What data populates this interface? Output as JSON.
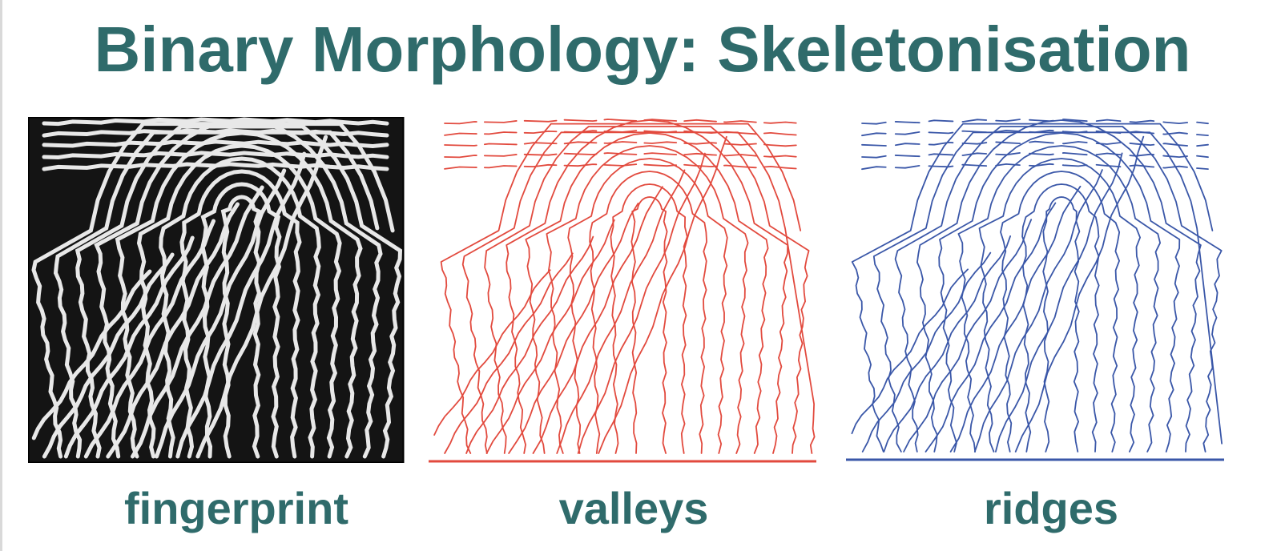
{
  "slide": {
    "title": "Binary Morphology: Skeletonisation"
  },
  "panels": [
    {
      "id": "fingerprint",
      "caption": "fingerprint",
      "stroke_color": "#e8e8e8",
      "background_color": "#141414"
    },
    {
      "id": "valleys",
      "caption": "valleys",
      "stroke_color": "#e24a3e",
      "background_color": "#ffffff"
    },
    {
      "id": "ridges",
      "caption": "ridges",
      "stroke_color": "#3a57a8",
      "background_color": "#ffffff"
    }
  ],
  "colors": {
    "title": "#2f6b6b",
    "caption": "#2f6b6b",
    "valleys_line": "#e24a3e",
    "ridges_line": "#3a57a8"
  }
}
